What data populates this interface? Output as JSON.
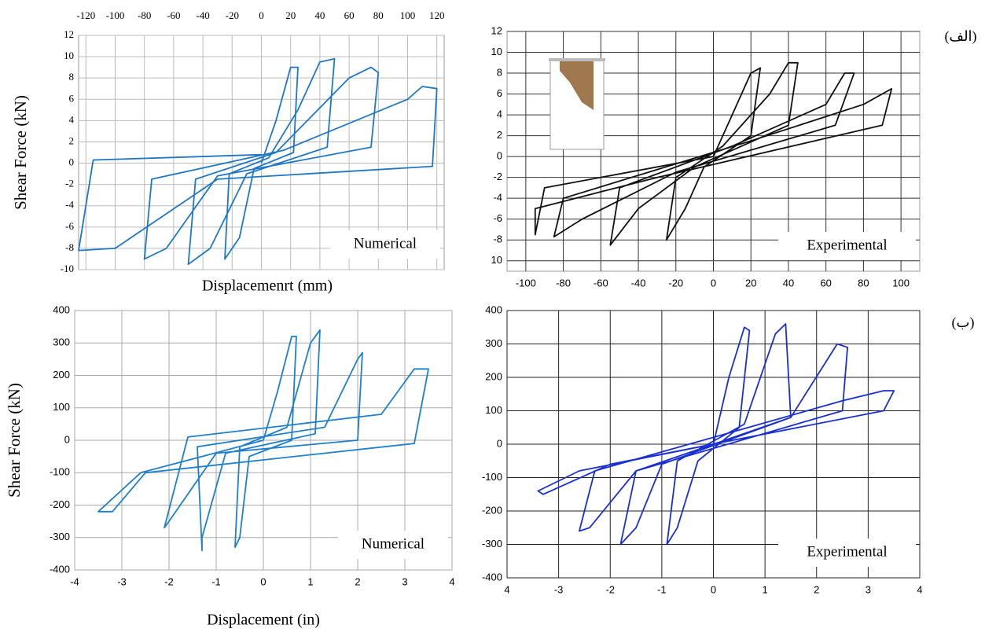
{
  "chart_data": [
    {
      "type": "line",
      "x_label": "Displacemenrt (mm)",
      "y_label": "Shear Force (kN)",
      "annotation": "Numerical",
      "xlim": [
        -125,
        125
      ],
      "ylim": [
        -10,
        12
      ],
      "xticks": [
        -120,
        -100,
        -80,
        -60,
        -40,
        -20,
        0,
        20,
        40,
        60,
        80,
        100,
        120
      ],
      "yticks": [
        -10,
        -8,
        -6,
        -4,
        -2,
        0,
        2,
        4,
        6,
        8,
        10,
        12
      ],
      "grid": true,
      "series": [
        {
          "color": "#1f77c4",
          "x": [
            0,
            10,
            20,
            25,
            22,
            -5,
            -15,
            -25,
            -22,
            5,
            25,
            40,
            50,
            45,
            -10,
            -35,
            -50,
            -45,
            10,
            60,
            75,
            80,
            75,
            -30,
            -65,
            -80,
            -75,
            15,
            100,
            110,
            120,
            117,
            -30,
            -100,
            -125,
            -115,
            0
          ],
          "values": [
            0,
            4,
            9,
            9,
            1,
            -0.5,
            -7,
            -9,
            -1,
            0.5,
            5,
            9.5,
            9.8,
            1.5,
            -1,
            -8,
            -9.5,
            -1.5,
            1,
            8,
            9,
            8.5,
            1.5,
            -1.2,
            -8,
            -9,
            -1.5,
            1.2,
            6,
            7.2,
            7,
            -0.3,
            -1.5,
            -8,
            -8.2,
            0.3,
            0.8
          ]
        }
      ]
    },
    {
      "type": "line",
      "annotation": "Experimental",
      "panel_label": "(الف)",
      "xlim": [
        -110,
        110
      ],
      "ylim": [
        -11,
        12
      ],
      "xticks": [
        -100,
        -80,
        -60,
        -40,
        -20,
        0,
        20,
        40,
        60,
        80,
        100
      ],
      "yticks": [
        12,
        10,
        8,
        6,
        4,
        2,
        0,
        -2,
        -4,
        -6,
        -8,
        {
          "value": -10,
          "label": "10"
        }
      ],
      "grid": true,
      "series": [
        {
          "color": "#111111",
          "x": [
            0,
            10,
            20,
            25,
            20,
            -5,
            -15,
            -25,
            -20,
            5,
            30,
            40,
            45,
            40,
            -10,
            -40,
            -55,
            -50,
            10,
            60,
            70,
            75,
            65,
            -20,
            -70,
            -85,
            -80,
            20,
            80,
            95,
            90,
            -30,
            -95,
            -95,
            -90,
            0
          ],
          "values": [
            0,
            4,
            8,
            8.5,
            2,
            -1,
            -5,
            -8,
            -2,
            1,
            6,
            9,
            9,
            3,
            -1,
            -5,
            -8.5,
            -3,
            1,
            5,
            8,
            8,
            3,
            -1.5,
            -6,
            -7.7,
            -4,
            1.5,
            5,
            6.5,
            3,
            -2,
            -5,
            -7.5,
            -3,
            0
          ]
        }
      ]
    },
    {
      "type": "line",
      "x_label": "Displacement (in)",
      "y_label": "Shear Force (kN)",
      "annotation": "Numerical",
      "xlim": [
        -4,
        4
      ],
      "ylim": [
        -400,
        400
      ],
      "xticks": [
        -4,
        -3,
        -2,
        -1,
        0,
        1,
        2,
        3,
        4
      ],
      "yticks": [
        -400,
        -300,
        -200,
        -100,
        0,
        100,
        200,
        300,
        400
      ],
      "grid": true,
      "series": [
        {
          "color": "#1f7fc8",
          "x": [
            0,
            0.3,
            0.6,
            0.7,
            0.6,
            -0.3,
            -0.5,
            -0.6,
            -0.5,
            0.5,
            1,
            1.2,
            1.1,
            -0.8,
            -1.3,
            -1.3,
            -1.4,
            1.3,
            2,
            2.1,
            2,
            -1,
            -2,
            -2.1,
            -1.6,
            2.5,
            3.2,
            3.5,
            3.2,
            -2.5,
            -3.2,
            -3.5,
            -2.6,
            0
          ],
          "values": [
            0,
            150,
            320,
            320,
            0,
            -50,
            -300,
            -330,
            -20,
            40,
            300,
            340,
            20,
            -40,
            -300,
            -340,
            -20,
            40,
            250,
            270,
            0,
            -40,
            -250,
            -270,
            10,
            80,
            220,
            220,
            -10,
            -100,
            -220,
            -220,
            -100,
            0
          ]
        }
      ]
    },
    {
      "type": "line",
      "annotation": "Experimental",
      "panel_label": "(ب)",
      "xlim": [
        -4,
        4
      ],
      "ylim": [
        -400,
        400
      ],
      "xticks": [
        {
          "value": -4,
          "label": "4"
        },
        -3,
        -2,
        -1,
        0,
        1,
        2,
        3,
        4
      ],
      "yticks": [
        400,
        300,
        200,
        100,
        0,
        -100,
        -200,
        -300,
        -400
      ],
      "grid": true,
      "series": [
        {
          "color": "#1a2fd0",
          "x": [
            0,
            0.3,
            0.6,
            0.7,
            0.5,
            -0.3,
            -0.7,
            -0.9,
            -0.7,
            0.6,
            1.2,
            1.4,
            1.5,
            -1,
            -1.5,
            -1.8,
            -1.5,
            1.5,
            2.4,
            2.6,
            2.5,
            -1.5,
            -2.4,
            -2.6,
            -2.3,
            2.5,
            3.3,
            3.5,
            3.3,
            -2,
            -3.3,
            -3.4,
            -2.6,
            0
          ],
          "values": [
            0,
            200,
            350,
            340,
            50,
            -50,
            -250,
            -300,
            -50,
            60,
            330,
            360,
            80,
            -60,
            -250,
            -300,
            -80,
            80,
            300,
            290,
            100,
            -80,
            -250,
            -260,
            -80,
            130,
            160,
            160,
            100,
            -60,
            -150,
            -140,
            -80,
            0
          ]
        }
      ]
    }
  ]
}
